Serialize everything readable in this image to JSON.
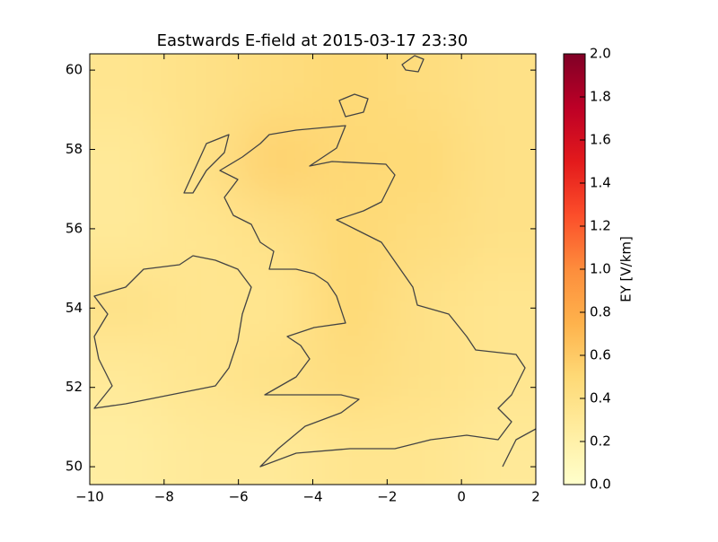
{
  "chart_data": {
    "type": "heatmap",
    "title": "Eastwards E-field at 2015-03-17 23:30",
    "xlim": [
      -10,
      2
    ],
    "ylim": [
      49.55,
      60.41
    ],
    "xticks": [
      {
        "value": -10,
        "label": "−10"
      },
      {
        "value": -8,
        "label": "−8"
      },
      {
        "value": -6,
        "label": "−6"
      },
      {
        "value": -4,
        "label": "−4"
      },
      {
        "value": -2,
        "label": "−2"
      },
      0,
      2
    ],
    "yticks": [
      50,
      52,
      54,
      56,
      58,
      60
    ],
    "z": [
      [
        0.35,
        0.4,
        0.45,
        0.5,
        0.45,
        0.4
      ],
      [
        0.3,
        0.4,
        0.55,
        0.5,
        0.5,
        0.4
      ],
      [
        0.3,
        0.35,
        0.4,
        0.5,
        0.45,
        0.4
      ],
      [
        0.4,
        0.35,
        0.35,
        0.5,
        0.4,
        0.35
      ],
      [
        0.3,
        0.35,
        0.4,
        0.45,
        0.4,
        0.35
      ],
      [
        0.25,
        0.3,
        0.3,
        0.35,
        0.35,
        0.3
      ]
    ],
    "colormap": [
      "#ffffcc",
      "#ffeda0",
      "#fed976",
      "#feb24c",
      "#fd8d3c",
      "#fc4e2a",
      "#e31a1c",
      "#bd0026",
      "#800026"
    ],
    "colorbar": {
      "label": "EY [V/km]",
      "lim": [
        0,
        2
      ],
      "ticks": [
        {
          "value": 0,
          "label": "0.0"
        },
        {
          "value": 0.2,
          "label": "0.2"
        },
        {
          "value": 0.4,
          "label": "0.4"
        },
        {
          "value": 0.6,
          "label": "0.6"
        },
        {
          "value": 0.8,
          "label": "0.8"
        },
        {
          "value": 1,
          "label": "1.0"
        },
        {
          "value": 1.2,
          "label": "1.2"
        },
        {
          "value": 1.4,
          "label": "1.4"
        },
        {
          "value": 1.6,
          "label": "1.6"
        },
        {
          "value": 1.8,
          "label": "1.8"
        },
        {
          "value": 2,
          "label": "2.0"
        }
      ]
    }
  }
}
